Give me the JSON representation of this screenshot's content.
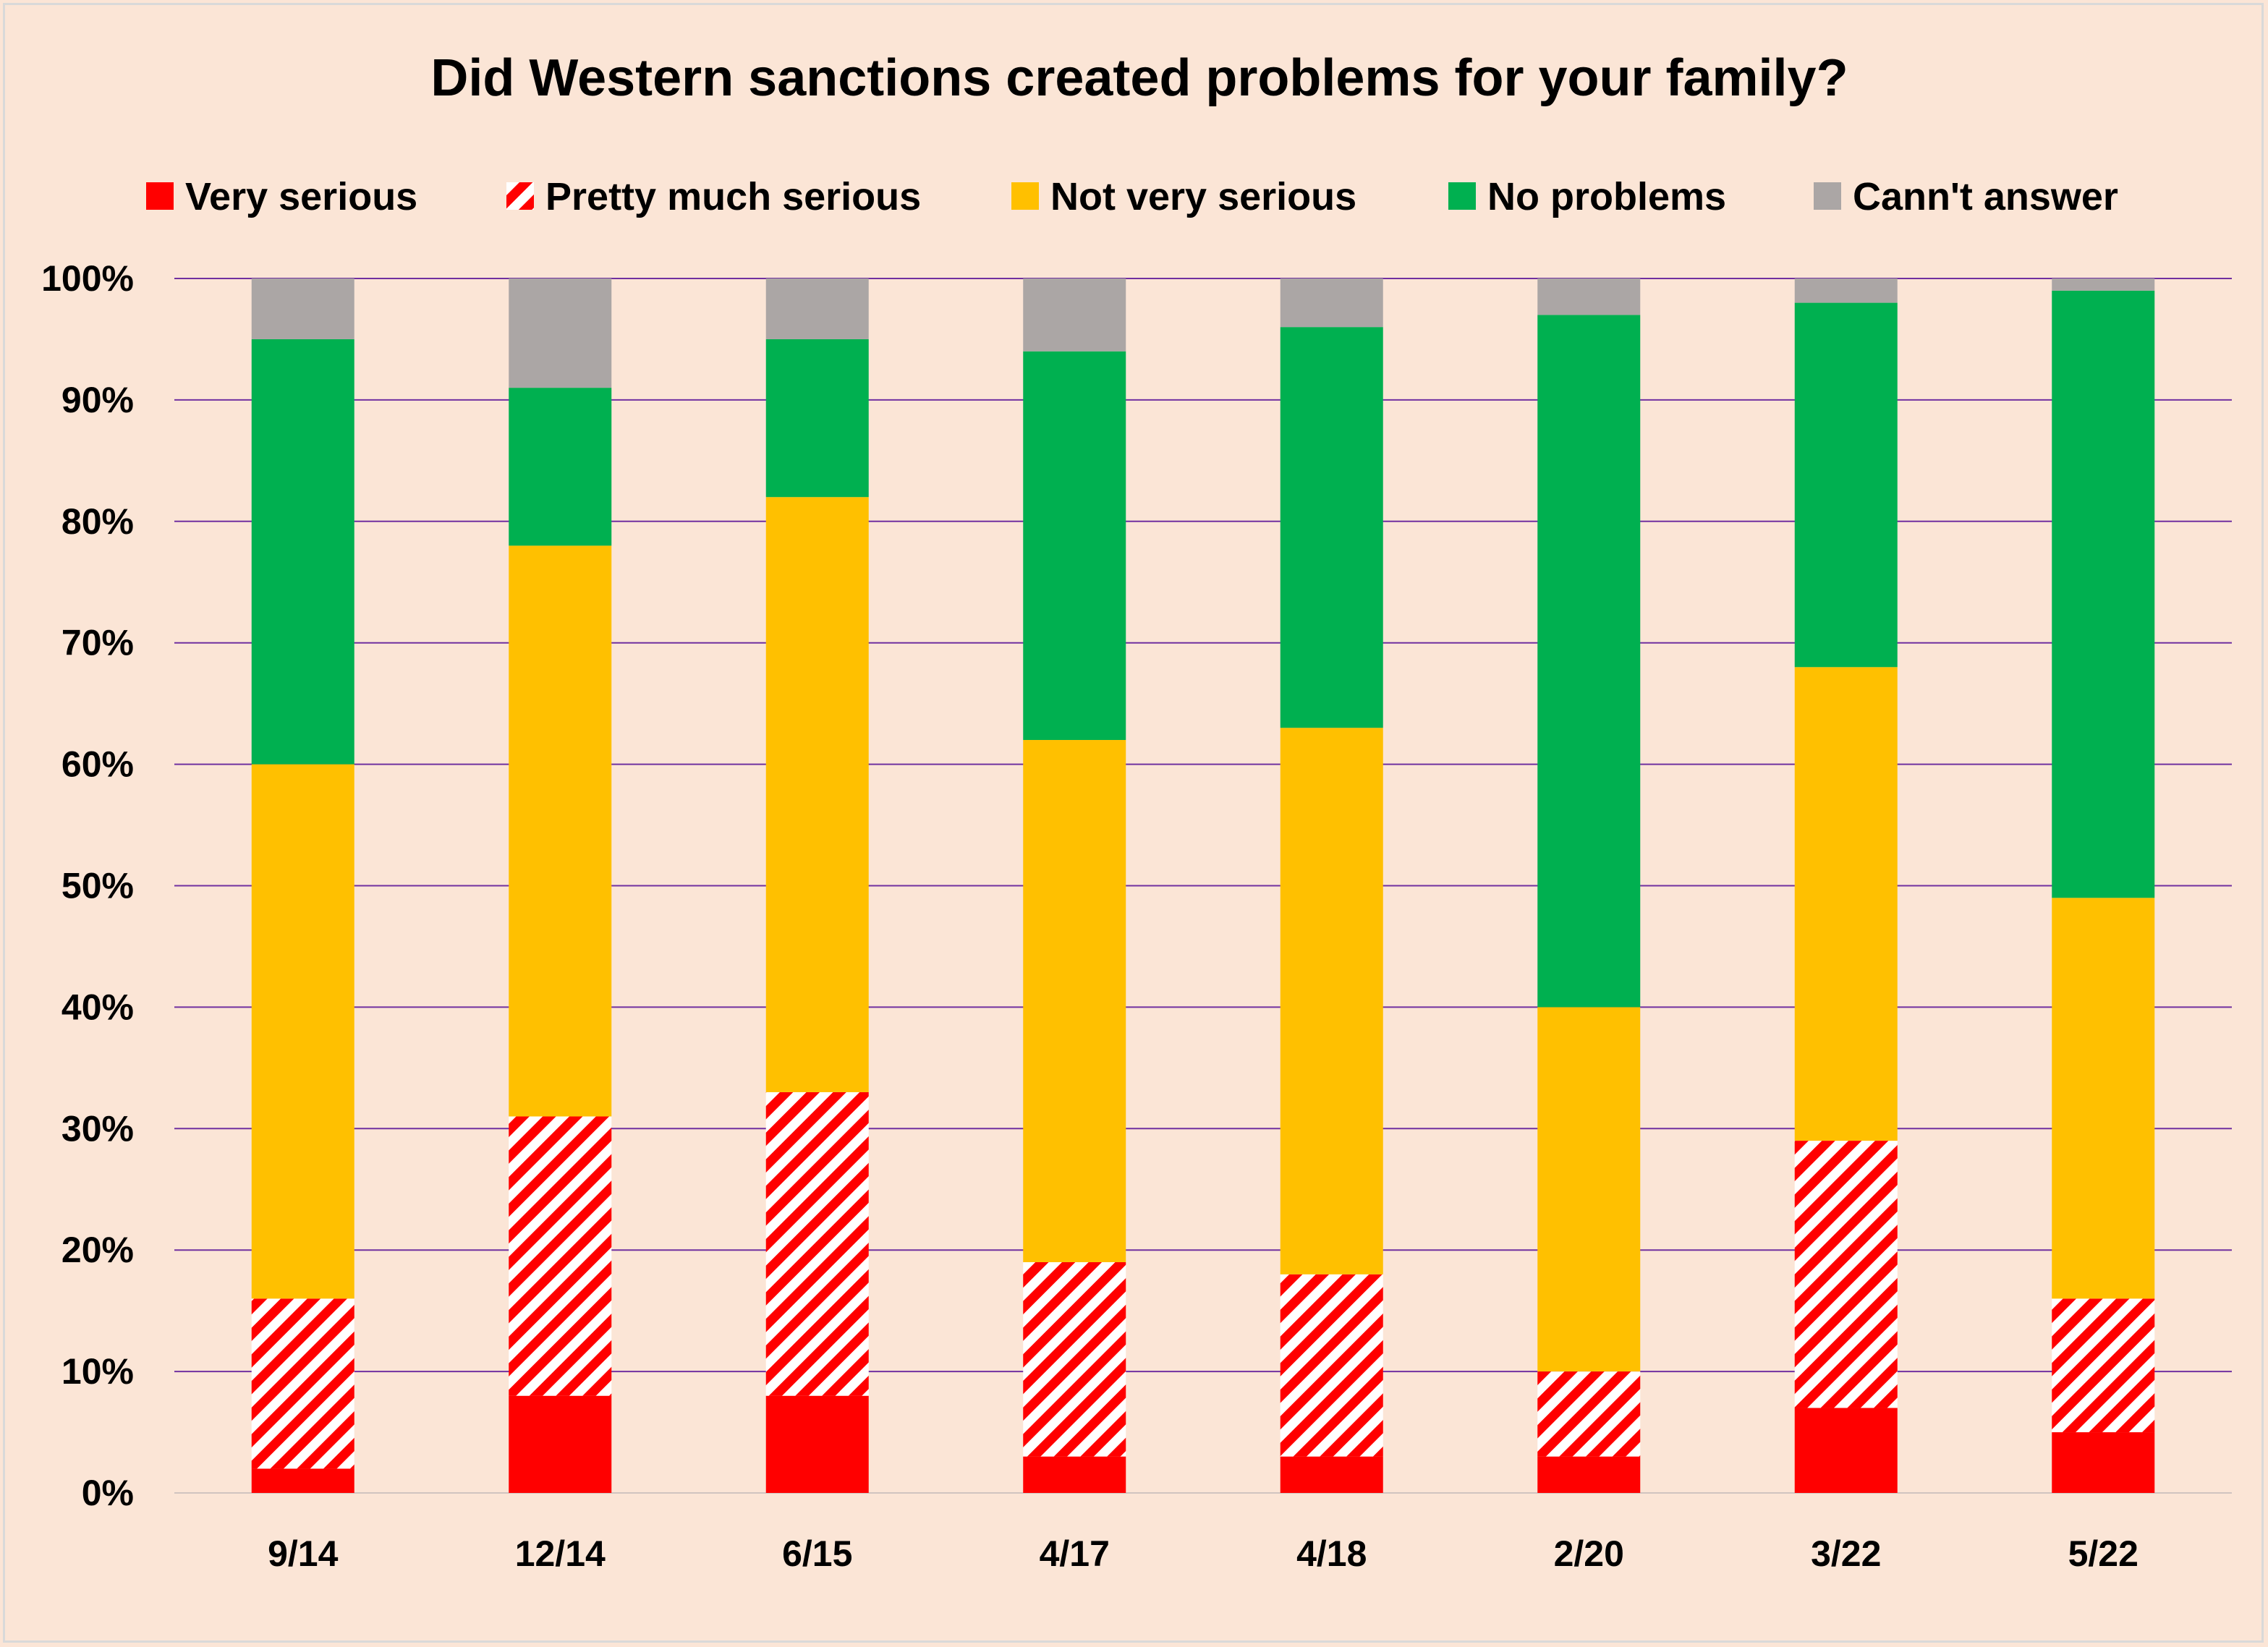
{
  "chart_data": {
    "type": "bar",
    "stacked": true,
    "title": "Did Western sanctions created problems for your family?",
    "categories": [
      "9/14",
      "12/14",
      "6/15",
      "4/17",
      "4/18",
      "2/20",
      "3/22",
      "5/22"
    ],
    "series": [
      {
        "name": "Very serious",
        "color": "#ff0000",
        "pattern": "solid",
        "values": [
          2,
          8,
          8,
          3,
          3,
          3,
          7,
          5
        ]
      },
      {
        "name": "Pretty much serious",
        "color": "#ff0000",
        "pattern": "diagonal-stripes",
        "values": [
          14,
          23,
          25,
          16,
          15,
          7,
          22,
          11
        ]
      },
      {
        "name": "Not very serious",
        "color": "#ffc000",
        "pattern": "solid",
        "values": [
          44,
          47,
          49,
          43,
          45,
          30,
          39,
          33
        ]
      },
      {
        "name": "No problems",
        "color": "#00b050",
        "pattern": "solid",
        "values": [
          35,
          13,
          13,
          32,
          33,
          57,
          30,
          50
        ]
      },
      {
        "name": "Cann't answer",
        "color": "#aba6a5",
        "pattern": "solid",
        "values": [
          5,
          9,
          5,
          6,
          4,
          3,
          2,
          1
        ]
      }
    ],
    "yticks": [
      "0%",
      "10%",
      "20%",
      "30%",
      "40%",
      "50%",
      "60%",
      "70%",
      "80%",
      "90%",
      "100%"
    ],
    "ylim": [
      0,
      100
    ],
    "grid": true,
    "gridline_color": "#7030a0",
    "legend_position": "top",
    "background_color": "#fbe5d6"
  }
}
